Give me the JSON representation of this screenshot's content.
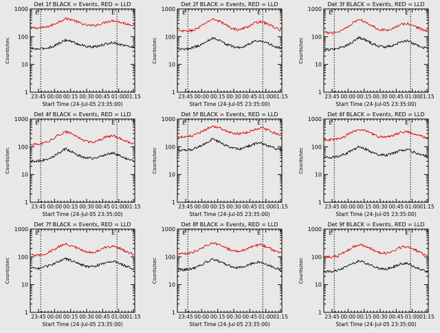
{
  "page": {
    "background": "#e8e8e8"
  },
  "colors": {
    "events": "#000000",
    "lld": "#dd0000"
  },
  "chart_data": [
    {
      "type": "line",
      "title": "Det 1f BLACK = Events, RED = LLD",
      "ylabel": "Counts/sec",
      "xlabel": "Start Time (24-Jul-05 23:35:00)",
      "scale": "log",
      "ylim": [
        1,
        1000
      ],
      "xticks": [
        "23:45",
        "00:00",
        "00:15",
        "00:30",
        "00:45",
        "01:00",
        "01:15"
      ],
      "yticks": [
        "1",
        "10",
        "100",
        "1000"
      ],
      "markers": [
        "E",
        "E"
      ],
      "series": [
        {
          "values": [
            210,
            205,
            215,
            255,
            340,
            450,
            410,
            320,
            260,
            250,
            280,
            345,
            385,
            330,
            290,
            260
          ]
        },
        {
          "values": [
            37,
            36,
            38,
            43,
            56,
            76,
            66,
            53,
            45,
            42,
            47,
            55,
            62,
            53,
            46,
            41
          ]
        }
      ]
    },
    {
      "type": "line",
      "title": "Det 2f BLACK = Events, RED = LLD",
      "ylabel": "Counts/sec",
      "xlabel": "Start Time (24-Jul-05 23:35:00)",
      "scale": "log",
      "ylim": [
        1,
        1000
      ],
      "xticks": [
        "23:45",
        "00:00",
        "00:15",
        "00:30",
        "00:45",
        "01:00",
        "01:15"
      ],
      "yticks": [
        "1",
        "10",
        "100",
        "1000"
      ],
      "markers": [
        "E",
        "E"
      ],
      "series": [
        {
          "values": [
            160,
            158,
            165,
            210,
            310,
            430,
            370,
            260,
            190,
            180,
            220,
            300,
            360,
            290,
            220,
            165
          ]
        },
        {
          "values": [
            37,
            35,
            40,
            47,
            62,
            90,
            75,
            54,
            44,
            40,
            50,
            66,
            75,
            58,
            45,
            39
          ]
        }
      ]
    },
    {
      "type": "line",
      "title": "Det 3f BLACK = Events, RED = LLD",
      "ylabel": "Counts/sec",
      "xlabel": "Start Time (24-Jul-05 23:35:00)",
      "scale": "log",
      "ylim": [
        1,
        1000
      ],
      "xticks": [
        "23:45",
        "00:00",
        "00:15",
        "00:30",
        "00:45",
        "01:00",
        "01:15"
      ],
      "yticks": [
        "1",
        "10",
        "100",
        "1000"
      ],
      "markers": [
        "E",
        "E"
      ],
      "series": [
        {
          "values": [
            140,
            138,
            150,
            200,
            300,
            420,
            340,
            240,
            180,
            170,
            205,
            265,
            300,
            245,
            190,
            155
          ]
        },
        {
          "values": [
            35,
            34,
            38,
            46,
            62,
            95,
            76,
            55,
            45,
            42,
            50,
            62,
            72,
            56,
            44,
            37
          ]
        }
      ]
    },
    {
      "type": "line",
      "title": "Det 4f BLACK = Events, RED = LLD",
      "ylabel": "Counts/sec",
      "xlabel": "Start Time (24-Jul-05 23:35:00)",
      "scale": "log",
      "ylim": [
        1,
        1000
      ],
      "xticks": [
        "23:45",
        "00:00",
        "00:15",
        "00:30",
        "00:45",
        "01:00",
        "01:15"
      ],
      "yticks": [
        "1",
        "10",
        "100",
        "1000"
      ],
      "markers": [
        "E",
        "E"
      ],
      "series": [
        {
          "values": [
            120,
            122,
            135,
            180,
            260,
            350,
            290,
            210,
            155,
            150,
            180,
            230,
            255,
            200,
            150,
            125
          ]
        },
        {
          "values": [
            30,
            31,
            34,
            42,
            58,
            85,
            66,
            48,
            40,
            38,
            44,
            54,
            60,
            46,
            36,
            30
          ]
        }
      ]
    },
    {
      "type": "line",
      "title": "Det 5f BLACK = Events, RED = LLD",
      "ylabel": "Counts/sec",
      "xlabel": "Start Time (24-Jul-05 23:35:00)",
      "scale": "log",
      "ylim": [
        1,
        1000
      ],
      "xticks": [
        "23:45",
        "00:00",
        "00:15",
        "00:30",
        "00:45",
        "01:00",
        "01:15"
      ],
      "yticks": [
        "1",
        "10",
        "100",
        "1000"
      ],
      "markers": [
        "E",
        "E"
      ],
      "series": [
        {
          "values": [
            230,
            228,
            240,
            300,
            420,
            560,
            500,
            380,
            300,
            290,
            330,
            420,
            480,
            400,
            320,
            250
          ]
        },
        {
          "values": [
            75,
            74,
            80,
            98,
            135,
            190,
            150,
            110,
            88,
            85,
            100,
            125,
            140,
            112,
            90,
            75
          ]
        }
      ]
    },
    {
      "type": "line",
      "title": "Det 6f BLACK = Events, RED = LLD",
      "ylabel": "Counts/sec",
      "xlabel": "Start Time (24-Jul-05 23:35:00)",
      "scale": "log",
      "ylim": [
        1,
        1000
      ],
      "xticks": [
        "23:45",
        "00:00",
        "00:15",
        "00:30",
        "00:45",
        "01:00",
        "01:15"
      ],
      "yticks": [
        "1",
        "10",
        "100",
        "1000"
      ],
      "markers": [
        "E",
        "E"
      ],
      "series": [
        {
          "values": [
            180,
            178,
            190,
            240,
            330,
            430,
            380,
            290,
            230,
            220,
            255,
            320,
            360,
            300,
            245,
            200
          ]
        },
        {
          "values": [
            42,
            41,
            45,
            55,
            72,
            100,
            82,
            62,
            52,
            50,
            58,
            72,
            80,
            64,
            52,
            45
          ]
        }
      ]
    },
    {
      "type": "line",
      "title": "Det 7f BLACK = Events, RED = LLD",
      "ylabel": "Counts/sec",
      "xlabel": "Start Time (24-Jul-05 23:35:00)",
      "scale": "log",
      "ylim": [
        1,
        1000
      ],
      "xticks": [
        "23:45",
        "00:00",
        "00:15",
        "00:30",
        "00:45",
        "01:00",
        "01:15"
      ],
      "yticks": [
        "1",
        "10",
        "100",
        "1000"
      ],
      "markers": [
        "E",
        "E"
      ],
      "series": [
        {
          "values": [
            115,
            112,
            125,
            165,
            230,
            290,
            250,
            190,
            150,
            145,
            175,
            225,
            250,
            200,
            150,
            120
          ]
        },
        {
          "values": [
            40,
            39,
            43,
            52,
            68,
            85,
            72,
            56,
            46,
            44,
            52,
            64,
            70,
            56,
            44,
            38
          ]
        }
      ]
    },
    {
      "type": "line",
      "title": "Det 8f BLACK = Events, RED = LLD",
      "ylabel": "Counts/sec",
      "xlabel": "Start Time (24-Jul-05 23:35:00)",
      "scale": "log",
      "ylim": [
        1,
        1000
      ],
      "xticks": [
        "23:45",
        "00:00",
        "00:15",
        "00:30",
        "00:45",
        "01:00",
        "01:15"
      ],
      "yticks": [
        "1",
        "10",
        "100",
        "1000"
      ],
      "markers": [
        "E",
        "E"
      ],
      "series": [
        {
          "values": [
            130,
            128,
            140,
            180,
            250,
            320,
            270,
            205,
            165,
            160,
            190,
            245,
            280,
            225,
            170,
            135
          ]
        },
        {
          "values": [
            35,
            34,
            38,
            46,
            62,
            82,
            68,
            52,
            43,
            41,
            48,
            60,
            66,
            52,
            41,
            34
          ]
        }
      ]
    },
    {
      "type": "line",
      "title": "Det 9f BLACK = Events, RED = LLD",
      "ylabel": "Counts/sec",
      "xlabel": "Start Time (24-Jul-05 23:35:00)",
      "scale": "log",
      "ylim": [
        1,
        1000
      ],
      "xticks": [
        "23:45",
        "00:00",
        "00:15",
        "00:30",
        "00:45",
        "01:00",
        "01:15"
      ],
      "yticks": [
        "1",
        "10",
        "100",
        "1000"
      ],
      "markers": [
        "E",
        "E"
      ],
      "series": [
        {
          "values": [
            100,
            98,
            110,
            150,
            215,
            280,
            240,
            180,
            140,
            135,
            165,
            215,
            240,
            190,
            140,
            110
          ]
        },
        {
          "values": [
            30,
            29,
            33,
            42,
            56,
            72,
            60,
            46,
            38,
            36,
            43,
            54,
            58,
            45,
            35,
            29
          ]
        }
      ]
    }
  ]
}
